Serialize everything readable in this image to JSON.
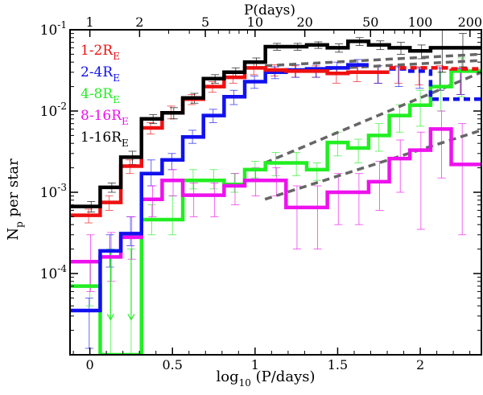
{
  "chart_data": {
    "type": "line",
    "xlabel": "log10 (P/days)",
    "xlabel_parts": {
      "pre": "log",
      "sub": "10",
      "post": " (P/days)"
    },
    "ylabel_parts": {
      "pre": "N",
      "sub": "p",
      "post": " per star"
    },
    "top_axis_label": "P(days)",
    "xlim": [
      -0.12,
      2.37
    ],
    "ylim_log10": [
      -5,
      -1
    ],
    "y_log_scale": true,
    "grid": false,
    "legend_position": "top-left",
    "bottom_ticks": [
      {
        "value": 0,
        "label": "0"
      },
      {
        "value": 0.5,
        "label": "0.5"
      },
      {
        "value": 1,
        "label": "1"
      },
      {
        "value": 1.5,
        "label": "1.5"
      },
      {
        "value": 2,
        "label": "2"
      }
    ],
    "top_ticks": [
      {
        "value": 0,
        "label": "1"
      },
      {
        "value": 0.301,
        "label": "2"
      },
      {
        "value": 0.699,
        "label": "5"
      },
      {
        "value": 1,
        "label": "10"
      },
      {
        "value": 1.301,
        "label": "20"
      },
      {
        "value": 1.699,
        "label": "50"
      },
      {
        "value": 2,
        "label": "100"
      },
      {
        "value": 2.301,
        "label": "200"
      }
    ],
    "left_ticks": [
      {
        "exp": -4,
        "label_base": "10",
        "label_exp": "-4"
      },
      {
        "exp": -3,
        "label_base": "10",
        "label_exp": "-3"
      },
      {
        "exp": -2,
        "label_base": "10",
        "label_exp": "-2"
      },
      {
        "exp": -1,
        "label_base": "10",
        "label_exp": "-1"
      }
    ],
    "bin_edges": [
      -0.12,
      0.0625,
      0.1875,
      0.3125,
      0.4375,
      0.5625,
      0.6875,
      0.8125,
      0.9375,
      1.0625,
      1.1875,
      1.3125,
      1.4375,
      1.5625,
      1.6875,
      1.8125,
      1.9375,
      2.0625,
      2.1875,
      2.37
    ],
    "bin_centers": [
      0.0,
      0.125,
      0.25,
      0.375,
      0.5,
      0.625,
      0.75,
      0.875,
      1.0,
      1.125,
      1.25,
      1.375,
      1.5,
      1.625,
      1.75,
      1.875,
      2.0,
      2.125,
      2.25
    ],
    "series": [
      {
        "name": "1-2R",
        "label_sub": "E",
        "color": "#ee1111",
        "values": [
          0.00052,
          0.00075,
          0.0021,
          0.0062,
          0.0095,
          0.014,
          0.02,
          0.026,
          0.034,
          0.032,
          0.031,
          0.031,
          0.029,
          0.03,
          0.03,
          null,
          null,
          null,
          null
        ],
        "err_hi": [
          0.00062,
          0.0009,
          0.0025,
          0.0072,
          0.0115,
          0.016,
          0.023,
          0.03,
          0.04,
          0.037,
          0.036,
          0.036,
          0.034,
          0.035,
          0.036,
          0.036,
          0.035,
          0.036,
          0.034
        ],
        "err_lo": [
          0.00042,
          0.0006,
          0.0017,
          0.0052,
          0.008,
          0.012,
          0.017,
          0.022,
          0.028,
          0.027,
          0.026,
          0.026,
          0.022,
          0.023,
          0.022,
          0.022,
          0.021,
          0.018,
          0.016
        ],
        "extrap": [
          0.034,
          0.034,
          0.034,
          0.033
        ]
      },
      {
        "name": "2-4R",
        "label_sub": "E",
        "color": "#1111ee",
        "values": [
          3.5e-05,
          0.00019,
          0.00031,
          0.0017,
          0.0025,
          0.0048,
          0.0088,
          0.015,
          0.023,
          0.03,
          0.032,
          0.033,
          0.034,
          0.037,
          null,
          null,
          null,
          null,
          null
        ],
        "err_hi": [
          5e-05,
          0.0003,
          0.0005,
          0.0025,
          0.003,
          0.0058,
          0.0105,
          0.018,
          0.027,
          0.035,
          0.037,
          0.038,
          0.04,
          0.043,
          0.036,
          0.035,
          0.034,
          0.034,
          0.033
        ],
        "err_lo": [
          1.2e-05,
          0.00012,
          0.00022,
          0.0012,
          0.0019,
          0.004,
          0.0072,
          0.012,
          0.019,
          0.025,
          0.026,
          0.026,
          0.028,
          0.03,
          0.022,
          0.02,
          0.019,
          0.018,
          0.016
        ],
        "extrap": [
          0.033,
          0.031,
          0.014,
          0.014
        ]
      },
      {
        "name": "4-8R",
        "label_sub": "E",
        "color": "#22ee22",
        "values": [
          7e-05,
          null,
          null,
          0.00046,
          0.00046,
          0.0014,
          0.0014,
          0.00125,
          0.0019,
          0.0023,
          0.0023,
          0.0019,
          0.0041,
          0.0035,
          0.005,
          0.0088,
          0.0118,
          0.02,
          0.031
        ],
        "err_hi": [
          0.00014,
          0.0002,
          0.0002,
          0.0007,
          0.0009,
          0.0019,
          0.0019,
          0.0017,
          0.0024,
          0.0031,
          0.0031,
          0.0023,
          0.0055,
          0.0045,
          0.007,
          0.012,
          0.018,
          0.03,
          0.045
        ],
        "err_lo": [
          4e-05,
          null,
          null,
          0.0003,
          0.0003,
          0.0011,
          0.0011,
          0.001,
          0.0015,
          0.0016,
          0.0016,
          0.0014,
          0.0028,
          0.0023,
          0.0032,
          0.0055,
          0.0065,
          0.01,
          0.015
        ],
        "upper_limits": [
          0.125,
          0.25
        ]
      },
      {
        "name": "8-16R",
        "label_sub": "E",
        "color": "#ee11ee",
        "values": [
          0.00014,
          0.00016,
          0.00028,
          0.00082,
          0.0014,
          0.00092,
          0.00092,
          0.0012,
          0.0014,
          0.0014,
          0.00065,
          0.00065,
          0.001,
          0.001,
          0.00135,
          0.0026,
          0.0033,
          0.006,
          0.0022
        ],
        "err_hi": [
          0.0003,
          0.00032,
          0.0005,
          0.0012,
          0.0019,
          0.0013,
          0.0013,
          0.0017,
          0.002,
          0.002,
          0.0012,
          0.0012,
          0.0017,
          0.0017,
          0.0024,
          0.0044,
          0.0055,
          0.01,
          0.007
        ],
        "err_lo": [
          6e-05,
          8e-05,
          0.00015,
          0.0005,
          0.0009,
          0.0005,
          0.0005,
          0.0007,
          0.0009,
          0.0009,
          0.0002,
          0.0002,
          0.0004,
          0.0004,
          0.0006,
          0.001,
          0.00035,
          0.0015,
          0.0003
        ]
      },
      {
        "name": "1-16R",
        "label_sub": "E",
        "color": "#000000",
        "values": [
          0.00067,
          0.00115,
          0.0027,
          0.008,
          0.0095,
          0.0145,
          0.025,
          0.03,
          0.04,
          0.062,
          0.062,
          0.065,
          0.06,
          0.072,
          0.065,
          0.06,
          0.055,
          0.06,
          0.06
        ],
        "err_hi": [
          0.00077,
          0.0013,
          0.0032,
          0.009,
          0.011,
          0.0165,
          0.028,
          0.034,
          0.045,
          0.068,
          0.068,
          0.071,
          0.067,
          0.08,
          0.073,
          0.07,
          0.065,
          0.1,
          0.09
        ],
        "err_lo": [
          0.00057,
          0.001,
          0.0022,
          0.007,
          0.008,
          0.0125,
          0.022,
          0.026,
          0.035,
          0.056,
          0.056,
          0.059,
          0.053,
          0.064,
          0.057,
          0.05,
          0.044,
          0.03,
          0.035
        ]
      }
    ],
    "dashed_fits": [
      {
        "color": "#666666",
        "from": [
          1.06,
          0.036
        ],
        "to": [
          2.37,
          0.05
        ]
      },
      {
        "color": "#666666",
        "from": [
          1.06,
          0.03
        ],
        "to": [
          2.37,
          0.042
        ]
      },
      {
        "color": "#666666",
        "from": [
          1.06,
          0.0023
        ],
        "to": [
          2.37,
          0.03
        ]
      },
      {
        "color": "#666666",
        "from": [
          1.06,
          0.00082
        ],
        "to": [
          2.37,
          0.0058
        ]
      }
    ]
  }
}
